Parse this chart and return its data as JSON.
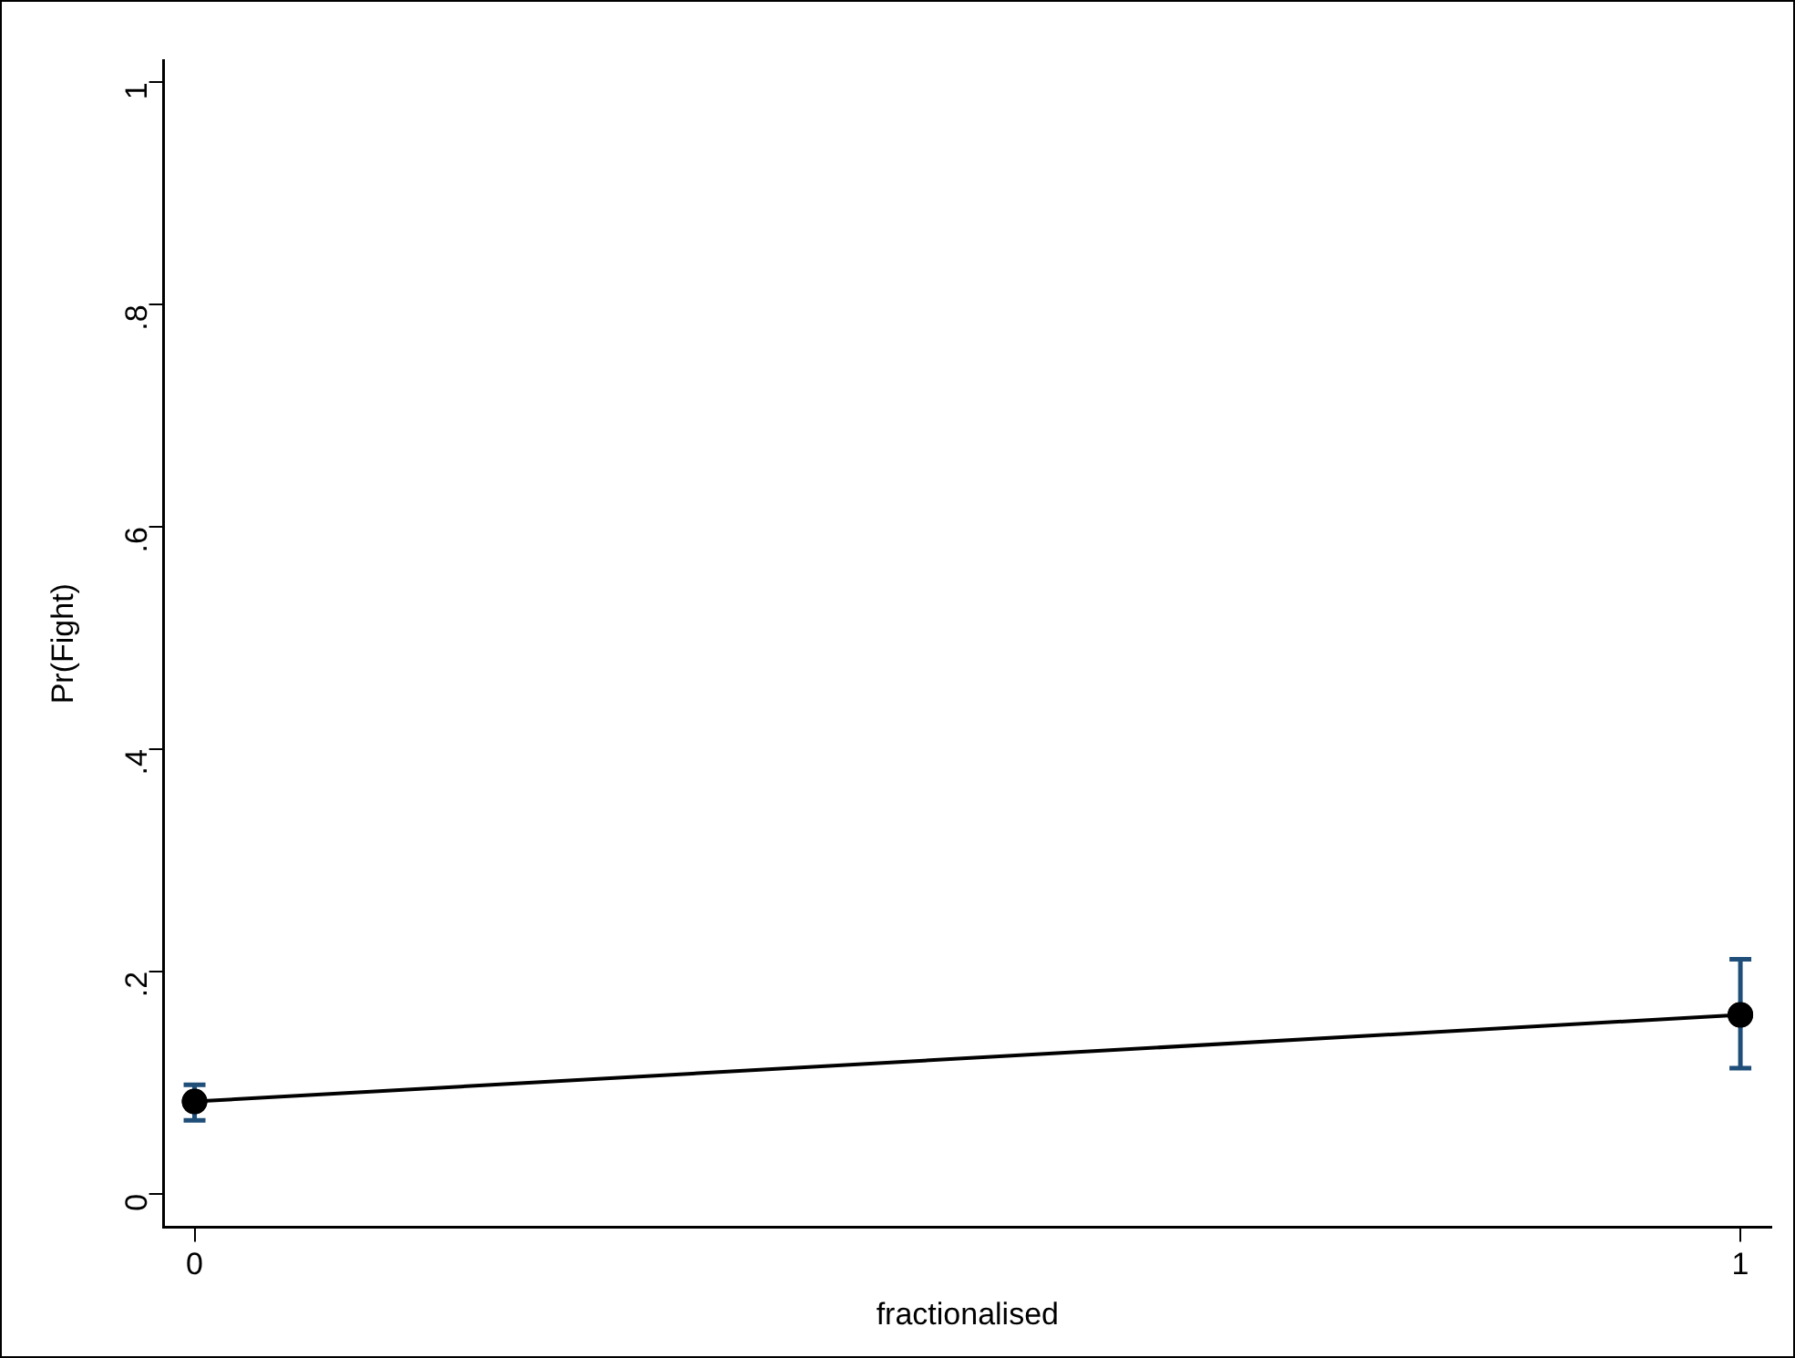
{
  "chart_data": {
    "type": "line",
    "xlabel": "fractionalised",
    "ylabel": "Pr(Fight)",
    "x": [
      0,
      1
    ],
    "series": [
      {
        "name": null,
        "color": "#000000",
        "values": [
          0.083,
          0.161
        ],
        "errors": [
          [
            0.066,
            0.098
          ],
          [
            0.113,
            0.211
          ]
        ]
      }
    ],
    "xlim": [
      -0.02,
      1.02
    ],
    "xticks": [
      0,
      1
    ],
    "ylim": [
      -0.03,
      1.02
    ],
    "yticks": [
      0,
      {
        "value": 0.2,
        "label": ".2"
      },
      {
        "value": 0.4,
        "label": ".4"
      },
      {
        "value": 0.6,
        "label": ".6"
      },
      {
        "value": 0.8,
        "label": ".8"
      },
      1
    ],
    "grid": false,
    "legend": false,
    "marker": "circle",
    "line_style": "solid"
  }
}
